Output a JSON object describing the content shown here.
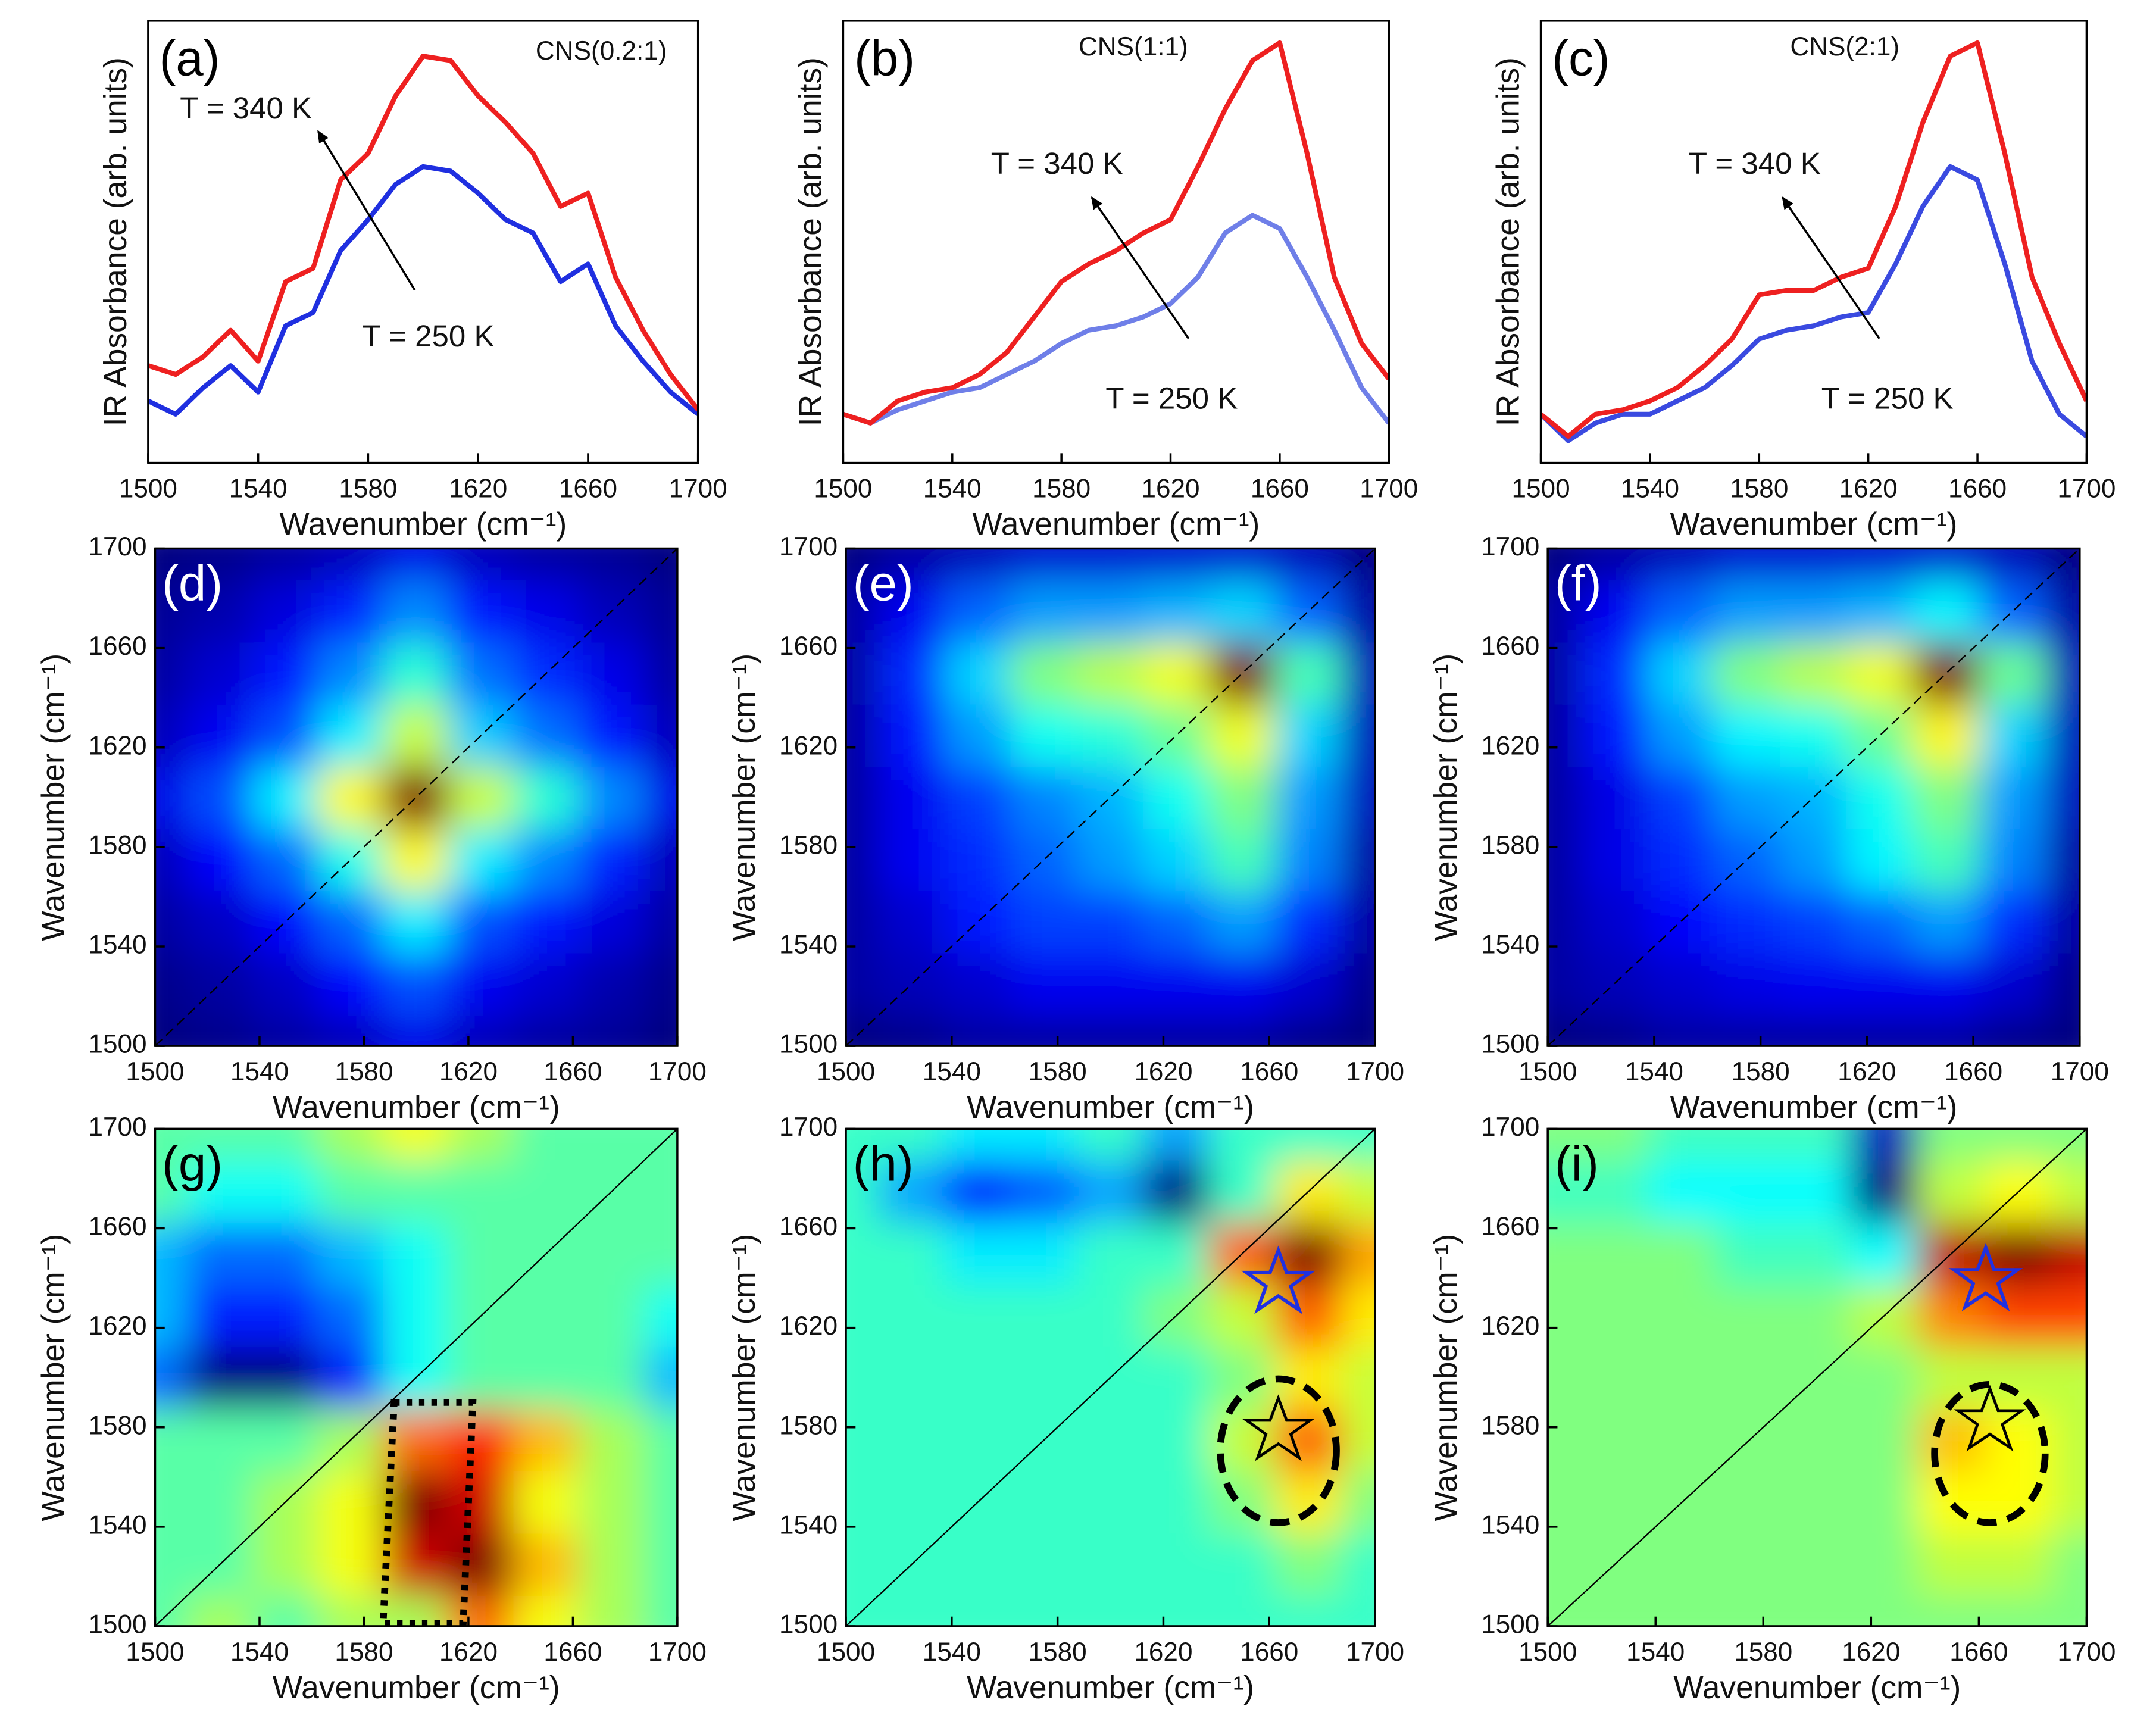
{
  "chart_data": [
    {
      "type": "line",
      "panel_label": "(a)",
      "title": "CNS(0.2:1)",
      "annotations": [
        "T = 340 K",
        "T = 250 K"
      ],
      "xlabel": "Wavenumber (cm⁻¹)",
      "ylabel": "IR Absorbance (arb. units)",
      "x": [
        1500,
        1510,
        1520,
        1530,
        1540,
        1550,
        1560,
        1570,
        1580,
        1590,
        1600,
        1610,
        1620,
        1630,
        1640,
        1650,
        1660,
        1670,
        1680,
        1690,
        1700
      ],
      "xlim": [
        1500,
        1700
      ],
      "xticks": [
        1500,
        1540,
        1580,
        1620,
        1660,
        1700
      ],
      "ylim": [
        0,
        100
      ],
      "series": [
        {
          "color": "#1f2fe0",
          "values": [
            14,
            11,
            17,
            22,
            16,
            31,
            34,
            48,
            55,
            63,
            67,
            66,
            61,
            55,
            52,
            41,
            45,
            31,
            23,
            16,
            11
          ]
        },
        {
          "color": "#ee2020",
          "values": [
            22,
            20,
            24,
            30,
            23,
            41,
            44,
            64,
            70,
            83,
            92,
            91,
            83,
            77,
            70,
            58,
            61,
            42,
            30,
            20,
            12
          ]
        }
      ]
    },
    {
      "type": "line",
      "panel_label": "(b)",
      "title": "CNS(1:1)",
      "annotations": [
        "T = 340 K",
        "T = 250 K"
      ],
      "xlabel": "Wavenumber (cm⁻¹)",
      "ylabel": "IR Absorbance (arb. units)",
      "x": [
        1500,
        1510,
        1520,
        1530,
        1540,
        1550,
        1560,
        1570,
        1580,
        1590,
        1600,
        1610,
        1620,
        1630,
        1640,
        1650,
        1660,
        1670,
        1680,
        1690,
        1700
      ],
      "xlim": [
        1500,
        1700
      ],
      "xticks": [
        1500,
        1540,
        1580,
        1620,
        1660,
        1700
      ],
      "ylim": [
        0,
        100
      ],
      "series": [
        {
          "color": "#6f7fe8",
          "values": [
            11,
            9,
            12,
            14,
            16,
            17,
            20,
            23,
            27,
            30,
            31,
            33,
            36,
            42,
            52,
            56,
            53,
            42,
            30,
            17,
            9
          ]
        },
        {
          "color": "#ee2020",
          "values": [
            11,
            9,
            14,
            16,
            17,
            20,
            25,
            33,
            41,
            45,
            48,
            52,
            55,
            67,
            80,
            91,
            95,
            70,
            42,
            27,
            19
          ]
        }
      ]
    },
    {
      "type": "line",
      "panel_label": "(c)",
      "title": "CNS(2:1)",
      "annotations": [
        "T = 340 K",
        "T = 250 K"
      ],
      "xlabel": "Wavenumber (cm⁻¹)",
      "ylabel": "IR Absorbance (arb. units)",
      "x": [
        1500,
        1510,
        1520,
        1530,
        1540,
        1550,
        1560,
        1570,
        1580,
        1590,
        1600,
        1610,
        1620,
        1630,
        1640,
        1650,
        1660,
        1670,
        1680,
        1690,
        1700
      ],
      "xlim": [
        1500,
        1700
      ],
      "xticks": [
        1500,
        1540,
        1580,
        1620,
        1660,
        1700
      ],
      "ylim": [
        0,
        100
      ],
      "series": [
        {
          "color": "#3a4ae0",
          "values": [
            11,
            5,
            9,
            11,
            11,
            14,
            17,
            22,
            28,
            30,
            31,
            33,
            34,
            45,
            58,
            67,
            64,
            45,
            23,
            11,
            6
          ]
        },
        {
          "color": "#ee2020",
          "values": [
            11,
            6,
            11,
            12,
            14,
            17,
            22,
            28,
            38,
            39,
            39,
            42,
            44,
            58,
            77,
            92,
            95,
            70,
            42,
            27,
            14
          ]
        }
      ]
    },
    {
      "type": "heatmap",
      "panel_label": "(d)",
      "xlabel": "Wavenumber (cm⁻¹)",
      "ylabel": "Wavenumber (cm⁻¹)",
      "x": [
        1500,
        1525,
        1550,
        1575,
        1600,
        1625,
        1650,
        1675,
        1700
      ],
      "y": [
        1500,
        1525,
        1550,
        1575,
        1600,
        1625,
        1650,
        1675,
        1700
      ],
      "xlim": [
        1500,
        1700
      ],
      "ylim": [
        1500,
        1700
      ],
      "xticks": [
        1500,
        1540,
        1580,
        1620,
        1660,
        1700
      ],
      "yticks": [
        1500,
        1540,
        1580,
        1620,
        1660,
        1700
      ],
      "z": [
        [
          1,
          2,
          4,
          6,
          10,
          6,
          4,
          3,
          1
        ],
        [
          2,
          4,
          7,
          12,
          19,
          11,
          8,
          5,
          2
        ],
        [
          4,
          7,
          12,
          21,
          33,
          19,
          14,
          9,
          4
        ],
        [
          6,
          12,
          21,
          36,
          57,
          33,
          24,
          15,
          6
        ],
        [
          10,
          19,
          33,
          57,
          90,
          52,
          38,
          24,
          10
        ],
        [
          6,
          11,
          19,
          33,
          52,
          30,
          22,
          14,
          6
        ],
        [
          4,
          8,
          14,
          24,
          38,
          22,
          16,
          10,
          4
        ],
        [
          3,
          5,
          9,
          15,
          24,
          14,
          10,
          6,
          3
        ],
        [
          1,
          2,
          4,
          6,
          10,
          6,
          4,
          3,
          1
        ]
      ]
    },
    {
      "type": "heatmap",
      "panel_label": "(e)",
      "xlabel": "Wavenumber (cm⁻¹)",
      "ylabel": "Wavenumber (cm⁻¹)",
      "x": [
        1500,
        1525,
        1550,
        1575,
        1600,
        1625,
        1650,
        1675,
        1700
      ],
      "y": [
        1500,
        1525,
        1550,
        1575,
        1600,
        1625,
        1650,
        1675,
        1700
      ],
      "xlim": [
        1500,
        1700
      ],
      "ylim": [
        1500,
        1700
      ],
      "xticks": [
        1500,
        1540,
        1580,
        1620,
        1660,
        1700
      ],
      "yticks": [
        1500,
        1540,
        1580,
        1620,
        1660,
        1700
      ],
      "z": [
        [
          5,
          6,
          8,
          8,
          8,
          8,
          8,
          6,
          5
        ],
        [
          8,
          10,
          12,
          15,
          15,
          15,
          15,
          12,
          6
        ],
        [
          8,
          12,
          18,
          22,
          22,
          25,
          30,
          20,
          8
        ],
        [
          8,
          15,
          20,
          25,
          30,
          35,
          45,
          28,
          8
        ],
        [
          8,
          15,
          22,
          28,
          32,
          40,
          50,
          30,
          10
        ],
        [
          8,
          18,
          30,
          40,
          42,
          48,
          60,
          35,
          10
        ],
        [
          8,
          20,
          35,
          50,
          55,
          60,
          95,
          45,
          10
        ],
        [
          8,
          15,
          25,
          30,
          30,
          32,
          35,
          25,
          8
        ],
        [
          5,
          8,
          10,
          12,
          12,
          12,
          12,
          10,
          5
        ]
      ]
    },
    {
      "type": "heatmap",
      "panel_label": "(f)",
      "xlabel": "Wavenumber (cm⁻¹)",
      "ylabel": "Wavenumber (cm⁻¹)",
      "x": [
        1500,
        1525,
        1550,
        1575,
        1600,
        1625,
        1650,
        1675,
        1700
      ],
      "y": [
        1500,
        1525,
        1550,
        1575,
        1600,
        1625,
        1650,
        1675,
        1700
      ],
      "xlim": [
        1500,
        1700
      ],
      "ylim": [
        1500,
        1700
      ],
      "xticks": [
        1500,
        1540,
        1580,
        1620,
        1660,
        1700
      ],
      "yticks": [
        1500,
        1540,
        1580,
        1620,
        1660,
        1700
      ],
      "z": [
        [
          5,
          6,
          8,
          8,
          8,
          8,
          8,
          6,
          5
        ],
        [
          8,
          10,
          12,
          14,
          15,
          15,
          15,
          12,
          6
        ],
        [
          8,
          12,
          16,
          20,
          22,
          25,
          30,
          20,
          8
        ],
        [
          8,
          14,
          20,
          25,
          30,
          38,
          45,
          28,
          8
        ],
        [
          8,
          14,
          22,
          30,
          32,
          40,
          50,
          30,
          10
        ],
        [
          8,
          18,
          30,
          38,
          40,
          48,
          62,
          35,
          10
        ],
        [
          8,
          20,
          35,
          50,
          55,
          60,
          95,
          48,
          10
        ],
        [
          8,
          15,
          25,
          30,
          30,
          32,
          38,
          25,
          8
        ],
        [
          5,
          8,
          10,
          12,
          12,
          12,
          12,
          10,
          5
        ]
      ]
    },
    {
      "type": "heatmap",
      "panel_label": "(g)",
      "xlabel": "Wavenumber (cm⁻¹)",
      "ylabel": "Wavenumber (cm⁻¹)",
      "x": [
        1500,
        1525,
        1550,
        1575,
        1600,
        1625,
        1650,
        1675,
        1700
      ],
      "y": [
        1500,
        1525,
        1550,
        1575,
        1600,
        1625,
        1650,
        1675,
        1700
      ],
      "xlim": [
        1500,
        1700
      ],
      "ylim": [
        1500,
        1700
      ],
      "xticks": [
        1500,
        1540,
        1580,
        1620,
        1660,
        1700
      ],
      "yticks": [
        1500,
        1540,
        1580,
        1620,
        1660,
        1700
      ],
      "z": [
        [
          0,
          5,
          0,
          5,
          5,
          20,
          10,
          5,
          0
        ],
        [
          0,
          0,
          5,
          10,
          30,
          35,
          15,
          5,
          0
        ],
        [
          0,
          0,
          5,
          10,
          35,
          30,
          10,
          5,
          0
        ],
        [
          0,
          0,
          0,
          5,
          20,
          25,
          15,
          5,
          0
        ],
        [
          -15,
          -30,
          -30,
          -20,
          -5,
          0,
          0,
          0,
          -10
        ],
        [
          -10,
          -20,
          -20,
          -15,
          -5,
          0,
          0,
          0,
          -5
        ],
        [
          -10,
          -15,
          -15,
          -10,
          -5,
          0,
          0,
          0,
          0
        ],
        [
          0,
          -5,
          -5,
          0,
          0,
          0,
          0,
          0,
          0
        ],
        [
          0,
          0,
          0,
          5,
          10,
          5,
          0,
          0,
          0
        ]
      ]
    },
    {
      "type": "heatmap",
      "panel_label": "(h)",
      "xlabel": "Wavenumber (cm⁻¹)",
      "ylabel": "Wavenumber (cm⁻¹)",
      "x": [
        1500,
        1525,
        1550,
        1575,
        1600,
        1625,
        1650,
        1675,
        1700
      ],
      "y": [
        1500,
        1525,
        1550,
        1575,
        1600,
        1625,
        1650,
        1675,
        1700
      ],
      "xlim": [
        1500,
        1700
      ],
      "ylim": [
        1500,
        1700
      ],
      "xticks": [
        1500,
        1540,
        1580,
        1620,
        1660,
        1700
      ],
      "yticks": [
        1500,
        1540,
        1580,
        1620,
        1660,
        1700
      ],
      "z": [
        [
          0,
          0,
          0,
          0,
          0,
          0,
          0,
          0,
          0
        ],
        [
          0,
          0,
          0,
          0,
          0,
          0,
          0,
          5,
          0
        ],
        [
          0,
          0,
          0,
          0,
          0,
          0,
          5,
          15,
          5
        ],
        [
          0,
          0,
          0,
          0,
          0,
          0,
          10,
          25,
          10
        ],
        [
          0,
          0,
          0,
          0,
          0,
          0,
          5,
          15,
          10
        ],
        [
          0,
          0,
          0,
          0,
          0,
          5,
          10,
          25,
          15
        ],
        [
          0,
          0,
          -5,
          -5,
          0,
          0,
          25,
          40,
          20
        ],
        [
          0,
          -10,
          -20,
          -15,
          -10,
          -30,
          0,
          15,
          10
        ],
        [
          0,
          0,
          -5,
          -5,
          0,
          -10,
          0,
          0,
          0
        ]
      ]
    },
    {
      "type": "heatmap",
      "panel_label": "(i)",
      "xlabel": "Wavenumber (cm⁻¹)",
      "ylabel": "Wavenumber (cm⁻¹)",
      "x": [
        1500,
        1525,
        1550,
        1575,
        1600,
        1625,
        1650,
        1675,
        1700
      ],
      "y": [
        1500,
        1525,
        1550,
        1575,
        1600,
        1625,
        1650,
        1675,
        1700
      ],
      "xlim": [
        1500,
        1700
      ],
      "ylim": [
        1500,
        1700
      ],
      "xticks": [
        1500,
        1540,
        1580,
        1620,
        1660,
        1700
      ],
      "yticks": [
        1500,
        1540,
        1580,
        1620,
        1660,
        1700
      ],
      "z": [
        [
          0,
          0,
          0,
          0,
          0,
          0,
          0,
          0,
          0
        ],
        [
          0,
          0,
          0,
          0,
          0,
          0,
          5,
          5,
          0
        ],
        [
          0,
          0,
          0,
          0,
          0,
          0,
          10,
          10,
          5
        ],
        [
          0,
          0,
          0,
          0,
          0,
          0,
          15,
          10,
          5
        ],
        [
          0,
          0,
          0,
          0,
          0,
          0,
          5,
          5,
          5
        ],
        [
          0,
          0,
          0,
          0,
          0,
          5,
          20,
          25,
          25
        ],
        [
          0,
          0,
          0,
          -5,
          -5,
          -10,
          35,
          40,
          35
        ],
        [
          -5,
          -5,
          -10,
          -10,
          -10,
          -40,
          5,
          10,
          5
        ],
        [
          0,
          0,
          -5,
          -5,
          -5,
          -35,
          0,
          0,
          0
        ]
      ]
    }
  ]
}
